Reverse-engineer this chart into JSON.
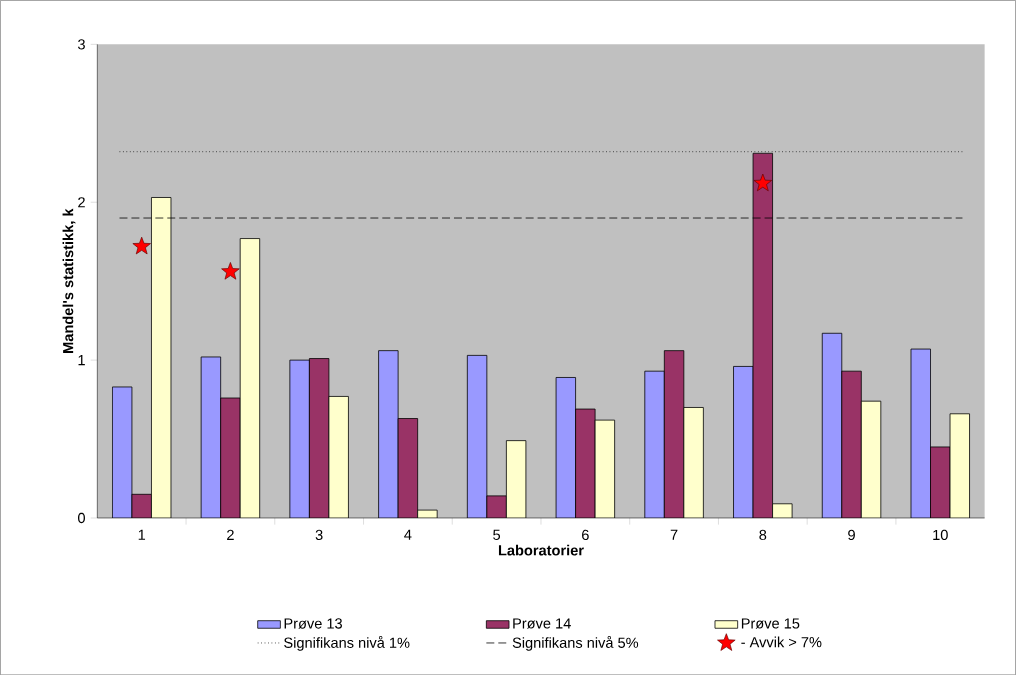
{
  "chart_data": {
    "type": "bar",
    "xlabel": "Laboratorier",
    "ylabel": "Mandel's statistikk, k",
    "categories": [
      "1",
      "2",
      "3",
      "4",
      "5",
      "6",
      "7",
      "8",
      "9",
      "10"
    ],
    "series": [
      {
        "name": "Prøve 13",
        "color": "#9999ff",
        "values": [
          0.83,
          1.02,
          1.0,
          1.06,
          1.03,
          0.89,
          0.93,
          0.96,
          1.17,
          1.07
        ]
      },
      {
        "name": "Prøve 14",
        "color": "#993366",
        "values": [
          0.15,
          0.76,
          1.01,
          0.63,
          0.14,
          0.69,
          1.06,
          2.31,
          0.93,
          0.45
        ]
      },
      {
        "name": "Prøve 15",
        "color": "#ffffcc",
        "values": [
          2.03,
          1.77,
          0.77,
          0.05,
          0.49,
          0.62,
          0.7,
          0.09,
          0.74,
          0.66
        ]
      },
      {
        "name": "- Avvik > 7%",
        "type": "scatter",
        "marker": "star",
        "color": "#ff0000",
        "x": [
          "1",
          "2",
          "8"
        ],
        "values": [
          1.72,
          1.56,
          2.12
        ]
      }
    ],
    "ylim": [
      0,
      3
    ],
    "yticks": [
      0,
      1,
      2,
      3
    ],
    "ref_lines": [
      {
        "axis": "y",
        "value": 2.32,
        "label": "Signifikans nivå 1%",
        "line_style": "dotted",
        "color": "#000000"
      },
      {
        "axis": "y",
        "value": 1.9,
        "label": "Signifikans nivå 5%",
        "line_style": "dashed",
        "color": "#000000"
      }
    ],
    "grid": false,
    "legend": "bottom"
  }
}
